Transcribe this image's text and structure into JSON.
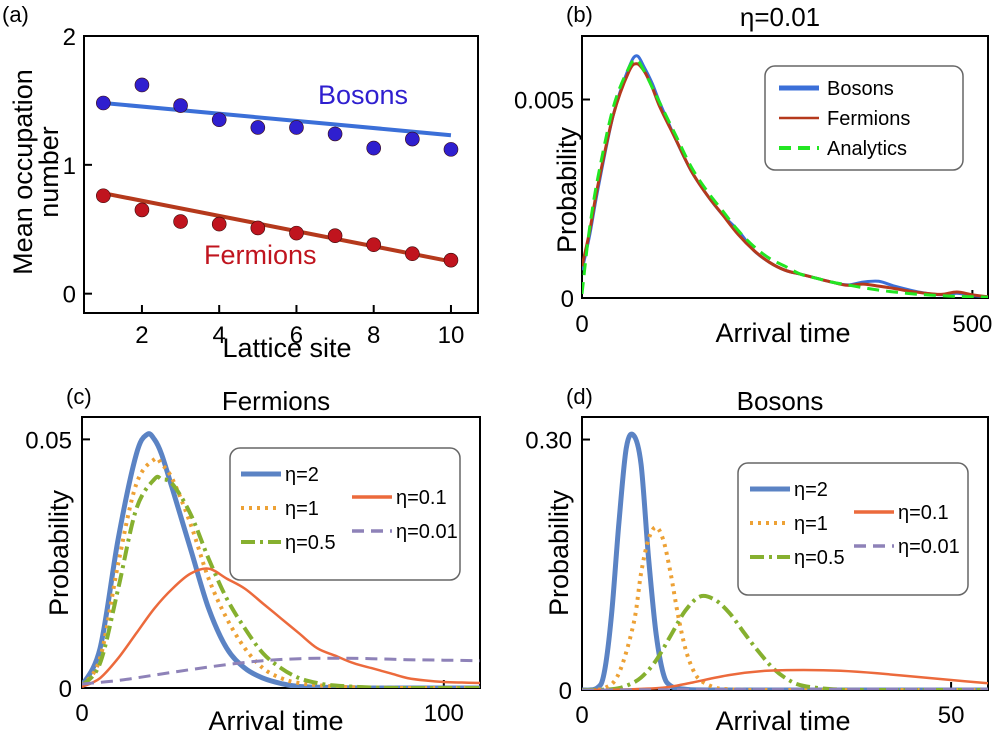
{
  "chart_data": [
    {
      "panel": "(a)",
      "type": "scatter",
      "title": "",
      "xlabel": "Lattice site",
      "ylabel_lines": [
        "Mean occupation",
        "number"
      ],
      "xlim": [
        0.5,
        10.7
      ],
      "ylim": [
        -0.15,
        2.0
      ],
      "xticks": [
        2,
        4,
        6,
        8,
        10
      ],
      "xtick_labels": [
        "2",
        "4",
        "6",
        "8",
        "10"
      ],
      "yticks": [
        0,
        1,
        2
      ],
      "ytick_labels": [
        "0",
        "1",
        "2"
      ],
      "series": [
        {
          "name": "Bosons",
          "color": "#2f1fcf",
          "fit_color": "#3b6fd8",
          "x": [
            1,
            2,
            3,
            4,
            5,
            6,
            7,
            8,
            9,
            10
          ],
          "y": [
            1.48,
            1.62,
            1.46,
            1.35,
            1.29,
            1.29,
            1.24,
            1.13,
            1.2,
            1.12
          ],
          "fit": [
            [
              1,
              1.48
            ],
            [
              10,
              1.23
            ]
          ]
        },
        {
          "name": "Fermions",
          "color": "#c0141e",
          "fit_color": "#b5391c",
          "x": [
            1,
            2,
            3,
            4,
            5,
            6,
            7,
            8,
            9,
            10
          ],
          "y": [
            0.76,
            0.65,
            0.56,
            0.54,
            0.51,
            0.47,
            0.45,
            0.38,
            0.31,
            0.26
          ],
          "fit": [
            [
              1,
              0.78
            ],
            [
              10,
              0.25
            ]
          ]
        }
      ]
    },
    {
      "panel": "(b)",
      "type": "line",
      "title": "η=0.01",
      "xlabel": "Arrival time",
      "ylabel": "Probability",
      "xlim": [
        0,
        520
      ],
      "ylim": [
        0,
        0.0066
      ],
      "xticks": [
        0,
        500
      ],
      "xtick_labels": [
        "0",
        "500"
      ],
      "yticks": [
        0,
        0.005
      ],
      "ytick_labels": [
        "0",
        "0.005"
      ],
      "legend": "top-right",
      "series": [
        {
          "name": "Bosons",
          "color": "#3b6fd8",
          "dash": "solid",
          "x": [
            0,
            10,
            20,
            40,
            60,
            70,
            80,
            90,
            100,
            120,
            140,
            160,
            180,
            200,
            220,
            240,
            260,
            280,
            300,
            320,
            340,
            360,
            380,
            400,
            420,
            440,
            460,
            480,
            500,
            520
          ],
          "y": [
            0.0007,
            0.0016,
            0.0027,
            0.0046,
            0.0058,
            0.0061,
            0.0058,
            0.0054,
            0.0049,
            0.004,
            0.0032,
            0.0026,
            0.0021,
            0.0017,
            0.0012,
            0.0009,
            0.0007,
            0.0006,
            0.0005,
            0.0004,
            0.00033,
            0.0004,
            0.00042,
            0.0003,
            0.0002,
            0.00012,
            8e-05,
            0.00012,
            6e-05,
            3e-05
          ]
        },
        {
          "name": "Fermions",
          "color": "#b5391c",
          "dash": "solid",
          "x": [
            0,
            10,
            20,
            40,
            60,
            70,
            80,
            90,
            100,
            120,
            140,
            160,
            180,
            200,
            220,
            240,
            260,
            280,
            300,
            320,
            340,
            360,
            380,
            400,
            420,
            440,
            460,
            480,
            500,
            520
          ],
          "y": [
            0.0008,
            0.0017,
            0.0028,
            0.0046,
            0.0057,
            0.0059,
            0.0057,
            0.0053,
            0.0048,
            0.004,
            0.0032,
            0.0026,
            0.0021,
            0.0016,
            0.0012,
            0.0009,
            0.0007,
            0.0006,
            0.0005,
            0.0004,
            0.00032,
            0.00035,
            0.0003,
            0.00024,
            0.00017,
            0.00012,
            9e-05,
            0.00015,
            8e-05,
            3e-05
          ]
        },
        {
          "name": "Analytics",
          "color": "#22e622",
          "dash": "dashed",
          "x": [
            0,
            5,
            10,
            20,
            40,
            60,
            70,
            80,
            90,
            100,
            120,
            140,
            160,
            180,
            200,
            220,
            240,
            260,
            280,
            300,
            320,
            340,
            360,
            380,
            400,
            420,
            440,
            460,
            480,
            500,
            520
          ],
          "y": [
            0.0001,
            0.001,
            0.0018,
            0.003,
            0.0048,
            0.0058,
            0.006,
            0.0057,
            0.0053,
            0.0049,
            0.0041,
            0.0033,
            0.0027,
            0.0022,
            0.0017,
            0.0013,
            0.001,
            0.0008,
            0.0006,
            0.0005,
            0.0004,
            0.00033,
            0.00026,
            0.0002,
            0.00015,
            0.00011,
            8e-05,
            6e-05,
            4e-05,
            3e-05,
            2e-05
          ]
        }
      ]
    },
    {
      "panel": "(c)",
      "type": "line",
      "title": "Fermions",
      "xlabel": "Arrival time",
      "ylabel": "Probability",
      "xlim": [
        0,
        110
      ],
      "ylim": [
        0,
        0.0545
      ],
      "xticks": [
        0,
        100
      ],
      "xtick_labels": [
        "0",
        "100"
      ],
      "yticks": [
        0,
        0.05
      ],
      "ytick_labels": [
        "0",
        "0.05"
      ],
      "legend": "top-right",
      "series": [
        {
          "name": "η=2",
          "color": "#5b83c4",
          "dash": "solid",
          "width": 5,
          "x": [
            0,
            5,
            10,
            15,
            18,
            20,
            22,
            25,
            30,
            35,
            40,
            45,
            50,
            55,
            60,
            70,
            80,
            90,
            110
          ],
          "y": [
            0.0005,
            0.008,
            0.03,
            0.047,
            0.051,
            0.05,
            0.047,
            0.04,
            0.028,
            0.016,
            0.008,
            0.004,
            0.002,
            0.0009,
            0.0003,
            0.0001,
            0,
            0,
            0
          ]
        },
        {
          "name": "η=1",
          "color": "#eda135",
          "dash": "dotted",
          "width": 4,
          "x": [
            0,
            5,
            10,
            15,
            20,
            22,
            25,
            30,
            35,
            40,
            45,
            50,
            55,
            60,
            70,
            80,
            90,
            110
          ],
          "y": [
            0.0005,
            0.006,
            0.025,
            0.041,
            0.046,
            0.045,
            0.042,
            0.033,
            0.022,
            0.014,
            0.008,
            0.004,
            0.002,
            0.001,
            0.0003,
            0.0001,
            0,
            0
          ]
        },
        {
          "name": "η=0.5",
          "color": "#86b02f",
          "dash": "dashdot",
          "width": 4,
          "x": [
            0,
            5,
            10,
            15,
            20,
            22,
            25,
            30,
            35,
            40,
            45,
            50,
            55,
            60,
            65,
            70,
            80,
            90,
            110
          ],
          "y": [
            0.0005,
            0.005,
            0.02,
            0.036,
            0.042,
            0.042,
            0.041,
            0.035,
            0.026,
            0.018,
            0.012,
            0.007,
            0.004,
            0.002,
            0.001,
            0.0005,
            0.0001,
            0,
            0
          ]
        },
        {
          "name": "η=0.1",
          "color": "#ec6a3c",
          "dash": "solid",
          "width": 2.5,
          "x": [
            0,
            5,
            10,
            15,
            20,
            25,
            30,
            35,
            40,
            45,
            50,
            55,
            60,
            65,
            70,
            75,
            80,
            85,
            90,
            95,
            100,
            105,
            110
          ],
          "y": [
            0.0002,
            0.002,
            0.006,
            0.011,
            0.016,
            0.02,
            0.023,
            0.024,
            0.022,
            0.02,
            0.017,
            0.014,
            0.011,
            0.008,
            0.0065,
            0.005,
            0.004,
            0.003,
            0.002,
            0.0015,
            0.0012,
            0.0011,
            0.001
          ]
        },
        {
          "name": "η=0.01",
          "color": "#8e82b8",
          "dash": "dashed",
          "width": 3,
          "x": [
            0,
            10,
            20,
            30,
            40,
            50,
            60,
            70,
            80,
            90,
            100,
            110
          ],
          "y": [
            0.0008,
            0.0015,
            0.0026,
            0.0037,
            0.0047,
            0.0055,
            0.0059,
            0.006,
            0.0059,
            0.0057,
            0.0056,
            0.0055
          ]
        }
      ]
    },
    {
      "panel": "(d)",
      "type": "line",
      "title": "Bosons",
      "xlabel": "Arrival time",
      "ylabel": "Probability",
      "xlim": [
        0,
        55
      ],
      "ylim": [
        0,
        0.327
      ],
      "xticks": [
        0,
        50
      ],
      "xtick_labels": [
        "0",
        "50"
      ],
      "yticks": [
        0,
        0.3
      ],
      "ytick_labels": [
        "0",
        "0.30"
      ],
      "legend": "top-right",
      "series": [
        {
          "name": "η=2",
          "color": "#5b83c4",
          "dash": "solid",
          "width": 5,
          "x": [
            0,
            2,
            3,
            4,
            5,
            6,
            7,
            8,
            9,
            10,
            11,
            12,
            14,
            20,
            55
          ],
          "y": [
            0,
            0.002,
            0.02,
            0.09,
            0.2,
            0.29,
            0.305,
            0.27,
            0.16,
            0.07,
            0.02,
            0.005,
            0.001,
            0,
            0
          ]
        },
        {
          "name": "η=1",
          "color": "#eda135",
          "dash": "dotted",
          "width": 4,
          "x": [
            0,
            3,
            5,
            7,
            8,
            9,
            10,
            11,
            12,
            13,
            14,
            15,
            16,
            18,
            20,
            25,
            55
          ],
          "y": [
            0,
            0.002,
            0.02,
            0.08,
            0.14,
            0.18,
            0.195,
            0.18,
            0.14,
            0.09,
            0.05,
            0.025,
            0.012,
            0.003,
            0.001,
            0,
            0
          ]
        },
        {
          "name": "η=0.5",
          "color": "#86b02f",
          "dash": "dashdot",
          "width": 4,
          "x": [
            0,
            4,
            6,
            8,
            10,
            12,
            14,
            16,
            18,
            20,
            22,
            24,
            26,
            28,
            30,
            34,
            40,
            55
          ],
          "y": [
            0,
            0.001,
            0.005,
            0.015,
            0.035,
            0.065,
            0.095,
            0.112,
            0.108,
            0.092,
            0.068,
            0.045,
            0.025,
            0.012,
            0.005,
            0.001,
            0,
            0
          ]
        },
        {
          "name": "η=0.1",
          "color": "#ec6a3c",
          "dash": "solid",
          "width": 2.5,
          "x": [
            0,
            5,
            10,
            12,
            15,
            20,
            25,
            30,
            35,
            40,
            45,
            50,
            55
          ],
          "y": [
            0,
            0.0005,
            0.002,
            0.004,
            0.009,
            0.018,
            0.023,
            0.024,
            0.023,
            0.02,
            0.016,
            0.012,
            0.008
          ]
        },
        {
          "name": "η=0.01",
          "color": "#8e82b8",
          "dash": "dashed",
          "width": 3,
          "x": [
            0,
            10,
            20,
            30,
            40,
            50,
            55
          ],
          "y": [
            0,
            0.0003,
            0.0006,
            0.0008,
            0.0009,
            0.001,
            0.001
          ]
        }
      ]
    }
  ]
}
